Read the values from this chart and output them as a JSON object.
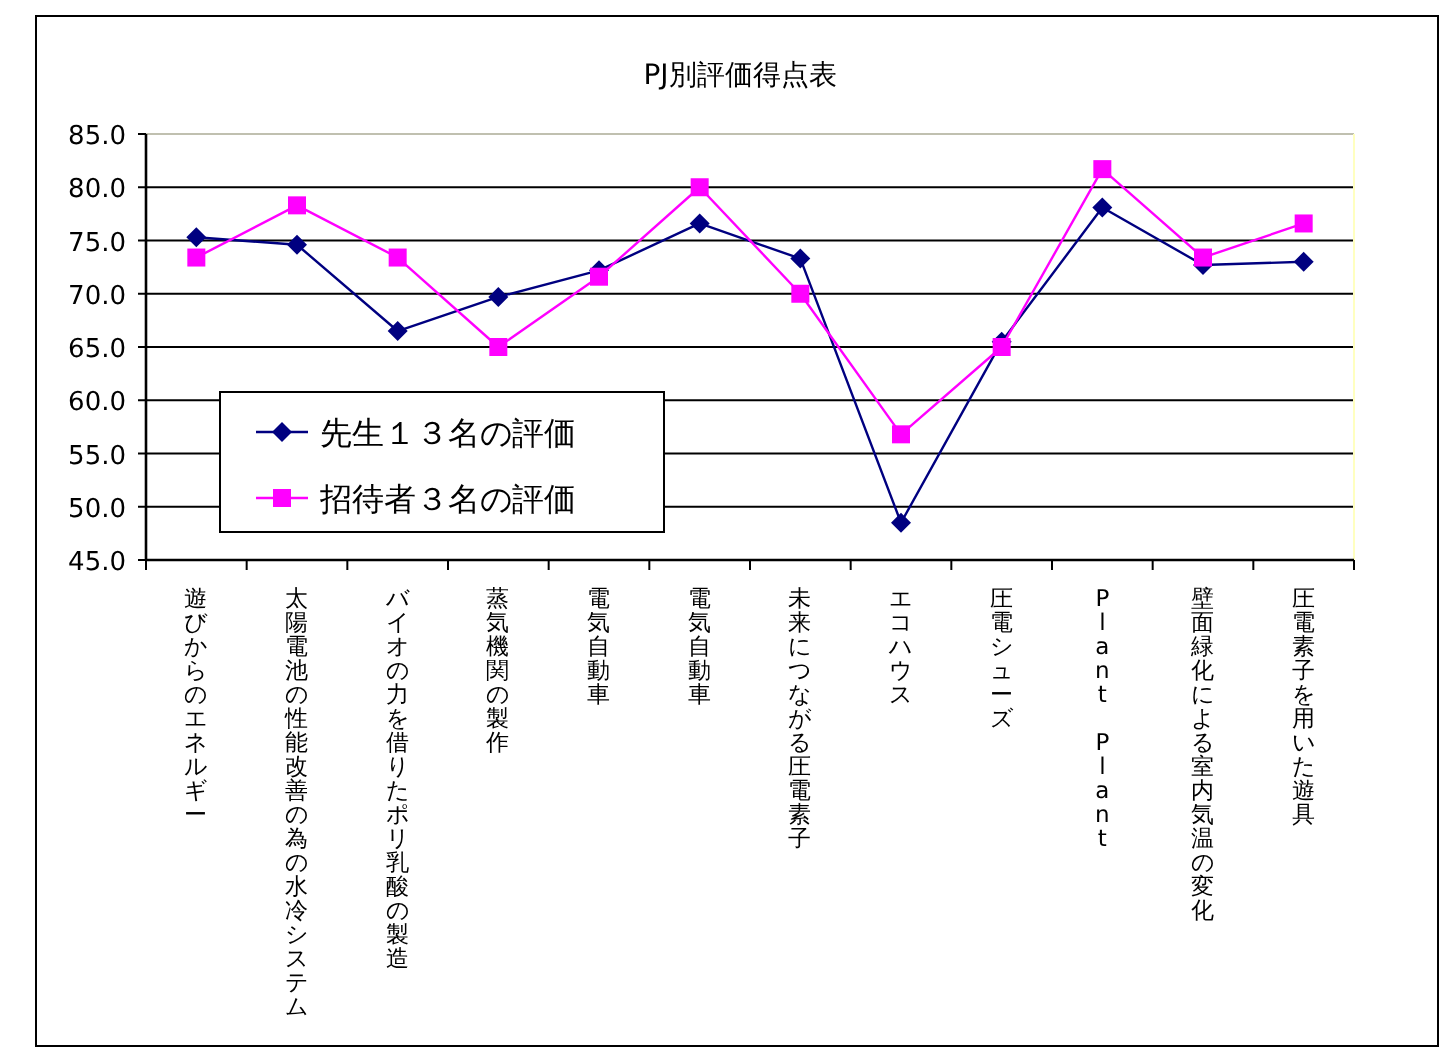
{
  "chart_data": {
    "type": "line",
    "title": "PJ別評価得点表",
    "categories": [
      "遊びからのエネルギー",
      "太陽電池の性能改善の為の水冷システム",
      "バイオの力を借りたポリ乳酸の製造",
      "蒸気機関の製作",
      "電気自動車",
      "電気自動車",
      "未来につながる圧電素子",
      "エコハウス",
      "圧電シューズ",
      "Plant Plant",
      "壁面緑化による室内気温の変化",
      "圧電素子を用いた遊具"
    ],
    "series": [
      {
        "name": "先生１３名の評価",
        "color": "#000080",
        "marker": "diamond",
        "values": [
          75.3,
          74.6,
          66.5,
          69.7,
          72.2,
          76.6,
          73.3,
          48.5,
          65.5,
          78.1,
          72.7,
          73.0
        ]
      },
      {
        "name": "招待者３名の評価",
        "color": "#ff00ff",
        "marker": "square",
        "values": [
          73.4,
          78.3,
          73.4,
          65.0,
          71.6,
          80.0,
          70.0,
          56.8,
          65.0,
          81.7,
          73.4,
          76.6
        ]
      }
    ],
    "ylim": [
      45,
      85
    ],
    "yticks": [
      {
        "value": 45,
        "label": "45.0"
      },
      {
        "value": 50,
        "label": "50.0"
      },
      {
        "value": 55,
        "label": "55.0"
      },
      {
        "value": 60,
        "label": "60.0"
      },
      {
        "value": 65,
        "label": "65.0"
      },
      {
        "value": 70,
        "label": "70.0"
      },
      {
        "value": 75,
        "label": "75.0"
      },
      {
        "value": 80,
        "label": "80.0"
      },
      {
        "value": 85,
        "label": "85.0"
      }
    ],
    "grid": "y",
    "legend": "bottom left",
    "line_style": "solid"
  }
}
